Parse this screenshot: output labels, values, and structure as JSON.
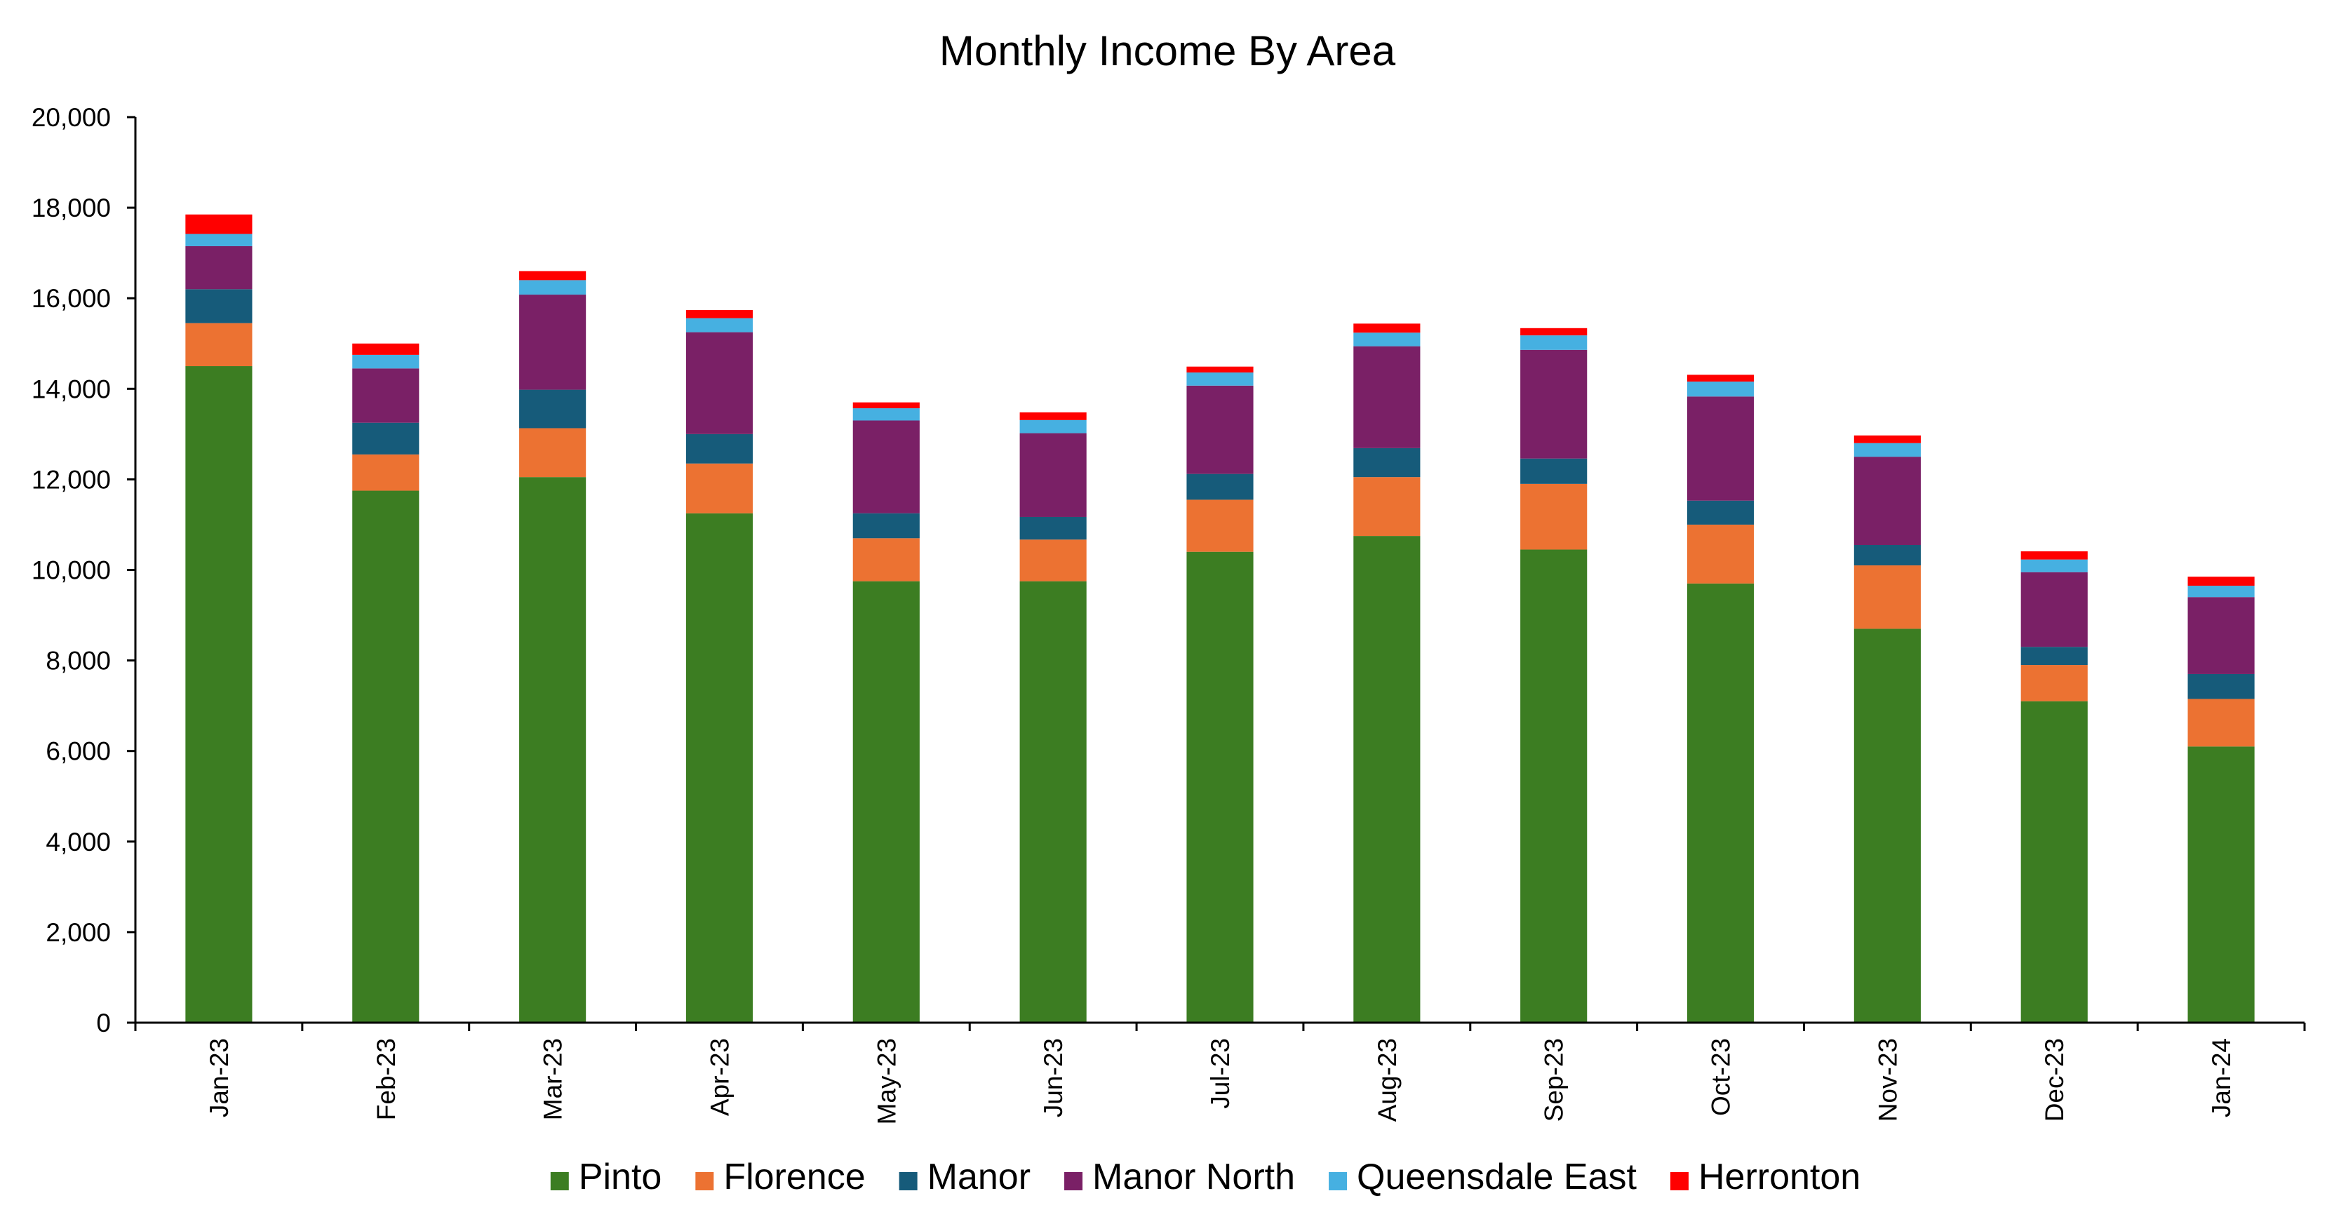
{
  "chart_data": {
    "type": "bar",
    "stacked": true,
    "title": "Monthly Income By Area",
    "xlabel": "",
    "ylabel": "",
    "ylim": [
      0,
      20000
    ],
    "yticks": [
      "0",
      "2,000",
      "4,000",
      "6,000",
      "8,000",
      "10,000",
      "12,000",
      "14,000",
      "16,000",
      "18,000",
      "20,000"
    ],
    "categories": [
      "Jan-23",
      "Feb-23",
      "Mar-23",
      "Apr-23",
      "May-23",
      "Jun-23",
      "Jul-23",
      "Aug-23",
      "Sep-23",
      "Oct-23",
      "Nov-23",
      "Dec-23",
      "Jan-24"
    ],
    "grid": false,
    "legend_position": "bottom",
    "series": [
      {
        "name": "Pinto",
        "color": "#3c7d22",
        "values": [
          14500,
          11750,
          12050,
          11250,
          9750,
          9750,
          10400,
          10750,
          10450,
          9700,
          8700,
          7100,
          6100
        ]
      },
      {
        "name": "Florence",
        "color": "#ec7232",
        "values": [
          950,
          800,
          1080,
          1100,
          950,
          920,
          1150,
          1300,
          1450,
          1300,
          1400,
          800,
          1050
        ]
      },
      {
        "name": "Manor",
        "color": "#165b7a",
        "values": [
          750,
          700,
          850,
          650,
          550,
          500,
          570,
          640,
          560,
          530,
          450,
          400,
          550
        ]
      },
      {
        "name": "Manor North",
        "color": "#7a2066",
        "values": [
          950,
          1200,
          2100,
          2250,
          2050,
          1850,
          1950,
          2250,
          2400,
          2300,
          1950,
          1650,
          1700
        ]
      },
      {
        "name": "Queensdale East",
        "color": "#46b0e1",
        "values": [
          270,
          300,
          320,
          310,
          270,
          290,
          290,
          300,
          320,
          330,
          300,
          280,
          250
        ]
      },
      {
        "name": "Herronton",
        "color": "#ff0000",
        "values": [
          430,
          250,
          200,
          180,
          130,
          170,
          130,
          200,
          160,
          150,
          170,
          180,
          200
        ]
      }
    ]
  }
}
